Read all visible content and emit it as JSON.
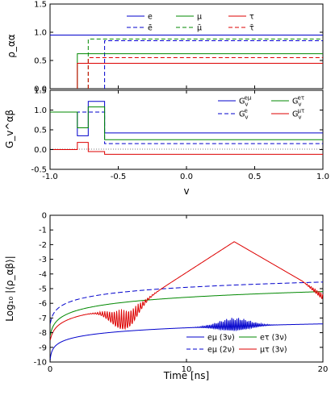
{
  "chart_data": [
    {
      "type": "line",
      "panel": "top",
      "ylabel": "ρ_αα",
      "xlim": [
        -1.0,
        1.0
      ],
      "ylim": [
        0.0,
        1.5
      ],
      "yticks": [
        "0.0",
        "0.5",
        "1.0",
        "1.5"
      ],
      "legend_placement": "top-right",
      "series": [
        {
          "name": "e",
          "color": "#0000cc",
          "dash": false,
          "points": [
            [
              -1.0,
              0.95
            ],
            [
              1.0,
              0.95
            ]
          ]
        },
        {
          "name": "ē",
          "color": "#0000cc",
          "dash": true,
          "points": [
            [
              -0.6,
              0.0
            ],
            [
              -0.6,
              0.85
            ],
            [
              1.0,
              0.85
            ]
          ]
        },
        {
          "name": "μ",
          "color": "#008800",
          "dash": false,
          "points": [
            [
              -0.8,
              0.0
            ],
            [
              -0.8,
              0.62
            ],
            [
              1.0,
              0.62
            ]
          ]
        },
        {
          "name": "μ̄",
          "color": "#008800",
          "dash": true,
          "points": [
            [
              -0.72,
              0.0
            ],
            [
              -0.72,
              0.88
            ],
            [
              1.0,
              0.88
            ]
          ]
        },
        {
          "name": "τ",
          "color": "#dd0000",
          "dash": false,
          "points": [
            [
              -0.8,
              0.0
            ],
            [
              -0.8,
              0.45
            ],
            [
              1.0,
              0.45
            ]
          ]
        },
        {
          "name": "τ̄",
          "color": "#dd0000",
          "dash": true,
          "points": [
            [
              -0.72,
              0.0
            ],
            [
              -0.72,
              0.55
            ],
            [
              1.0,
              0.55
            ]
          ]
        }
      ]
    },
    {
      "type": "line",
      "panel": "middle",
      "ylabel": "G_v^αβ",
      "xlabel": "v",
      "xlim": [
        -1.0,
        1.0
      ],
      "ylim": [
        -0.5,
        1.5
      ],
      "yticks": [
        "-0.5",
        "0.0",
        "0.5",
        "1.0",
        "1.5"
      ],
      "xticks": [
        "-1.0",
        "-0.5",
        "0.0",
        "0.5",
        "1.0"
      ],
      "legend_placement": "top-right",
      "series": [
        {
          "name": "G_v^eμ",
          "color": "#0000cc",
          "dash": false,
          "points": [
            [
              -1.0,
              0.95
            ],
            [
              -0.8,
              0.95
            ],
            [
              -0.8,
              0.35
            ],
            [
              -0.72,
              0.35
            ],
            [
              -0.72,
              1.22
            ],
            [
              -0.6,
              1.22
            ],
            [
              -0.6,
              0.42
            ],
            [
              1.0,
              0.42
            ]
          ]
        },
        {
          "name": "G_v^e",
          "color": "#0000cc",
          "dash": true,
          "points": [
            [
              -1.0,
              0.95
            ],
            [
              -0.6,
              0.95
            ],
            [
              -0.6,
              0.15
            ],
            [
              1.0,
              0.15
            ]
          ]
        },
        {
          "name": "G_v^eτ",
          "color": "#008800",
          "dash": false,
          "points": [
            [
              -1.0,
              0.95
            ],
            [
              -0.8,
              0.95
            ],
            [
              -0.8,
              0.55
            ],
            [
              -0.72,
              0.55
            ],
            [
              -0.72,
              1.08
            ],
            [
              -0.6,
              1.08
            ],
            [
              -0.6,
              0.25
            ],
            [
              1.0,
              0.25
            ]
          ]
        },
        {
          "name": "G_v^μτ",
          "color": "#dd0000",
          "dash": false,
          "points": [
            [
              -1.0,
              0.0
            ],
            [
              -0.8,
              0.0
            ],
            [
              -0.8,
              0.18
            ],
            [
              -0.72,
              0.18
            ],
            [
              -0.72,
              -0.05
            ],
            [
              -0.6,
              -0.05
            ],
            [
              -0.6,
              -0.12
            ],
            [
              1.0,
              -0.12
            ]
          ]
        }
      ]
    },
    {
      "type": "line",
      "panel": "bottom",
      "xlabel": "Time [ns]",
      "ylabel": "Log₁₀ |⟨ρ_αβ⟩|",
      "xlim": [
        0,
        20
      ],
      "ylim": [
        -10,
        0
      ],
      "xticks": [
        "0",
        "10",
        "20"
      ],
      "yticks": [
        "0",
        "-1",
        "-2",
        "-3",
        "-4",
        "-5",
        "-6",
        "-7",
        "-8",
        "-9",
        "-10"
      ],
      "legend_placement": "bottom-right",
      "series": [
        {
          "name": "eμ (3ν)",
          "color": "#0000cc",
          "dash": false
        },
        {
          "name": "eτ (3ν)",
          "color": "#008800",
          "dash": false
        },
        {
          "name": "eμ (2ν)",
          "color": "#0000cc",
          "dash": true
        },
        {
          "name": "μτ (3ν)",
          "color": "#dd0000",
          "dash": false
        }
      ]
    }
  ]
}
